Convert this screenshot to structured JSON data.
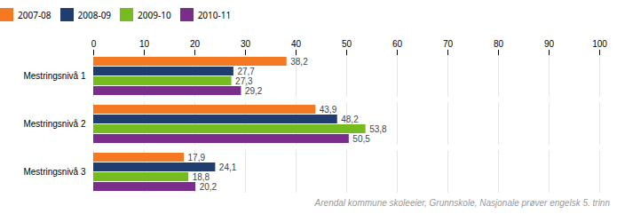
{
  "chart_data": {
    "type": "bar",
    "orientation": "horizontal",
    "categories": [
      "Mestringsnivå 1",
      "Mestringsnivå 2",
      "Mestringsnivå 3"
    ],
    "series": [
      {
        "name": "2007-08",
        "color": "#F47921",
        "values": [
          38.2,
          43.9,
          17.9
        ],
        "value_labels": [
          "38,2",
          "43,9",
          "17,9"
        ]
      },
      {
        "name": "2008-09",
        "color": "#1F3D6E",
        "values": [
          27.7,
          48.2,
          24.1
        ],
        "value_labels": [
          "27,7",
          "48,2",
          "24,1"
        ]
      },
      {
        "name": "2009-10",
        "color": "#76BC21",
        "values": [
          27.3,
          53.8,
          18.8
        ],
        "value_labels": [
          "27,3",
          "53,8",
          "18,8"
        ]
      },
      {
        "name": "2010-11",
        "color": "#7B2D8B",
        "values": [
          29.2,
          50.5,
          20.2
        ],
        "value_labels": [
          "29,2",
          "50,5",
          "20,2"
        ]
      }
    ],
    "xlim": [
      0,
      100
    ],
    "xticks": [
      0,
      10,
      20,
      30,
      40,
      50,
      60,
      70,
      80,
      90,
      100
    ],
    "grid": true,
    "legend": "top",
    "data_labels": true,
    "caption": "Arendal kommune skoleeier, Grunnskole, Nasjonale prøver engelsk 5. trinn"
  }
}
